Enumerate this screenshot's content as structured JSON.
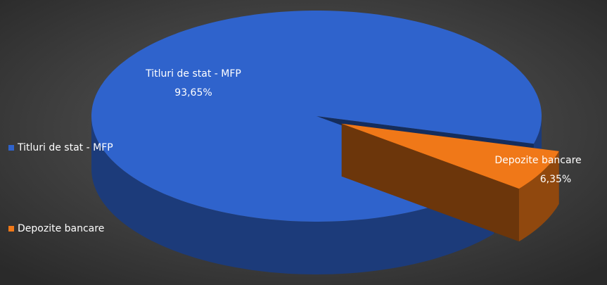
{
  "chart_data": {
    "type": "pie3d",
    "categories": [
      "Titluri de stat - MFP",
      "Depozite bancare"
    ],
    "values": [
      93.65,
      6.35
    ],
    "value_labels": [
      "93,65%",
      "6,35%"
    ],
    "colors": [
      "#2f63cc",
      "#f07818"
    ],
    "exploded": [
      false,
      true
    ],
    "legend": "left"
  }
}
